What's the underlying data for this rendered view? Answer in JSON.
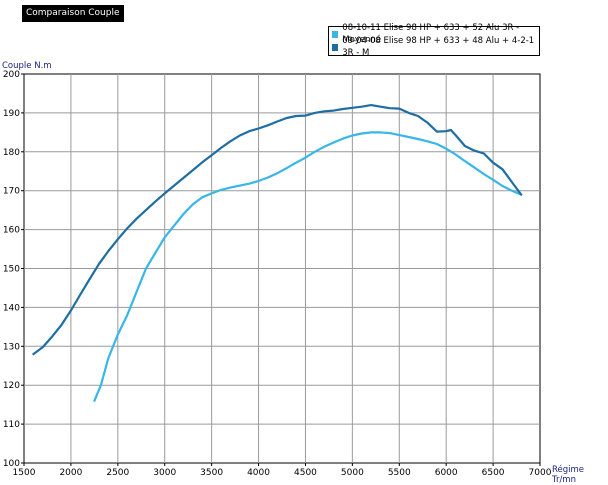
{
  "window_title": "Comparaison Couple",
  "chart_data": {
    "type": "line",
    "ylabel": "Couple N.m",
    "xlabel": "Régime Tr/mn",
    "xlim": [
      1500,
      7000
    ],
    "ylim": [
      100,
      200
    ],
    "xticks": [
      1500,
      2000,
      2500,
      3000,
      3500,
      4000,
      4500,
      5000,
      5500,
      6000,
      6500,
      7000
    ],
    "yticks": [
      100,
      110,
      120,
      130,
      140,
      150,
      160,
      170,
      180,
      190,
      200
    ],
    "grid": true,
    "legend_position": "top-right",
    "series": [
      {
        "name": "08-10-11 Elise 98 HP + 633 + 52 Alu 3R - Moyenné",
        "color": "#38b6e8",
        "x": [
          2250,
          2320,
          2400,
          2500,
          2600,
          2700,
          2800,
          2900,
          3000,
          3100,
          3200,
          3300,
          3400,
          3500,
          3600,
          3700,
          3800,
          3900,
          4000,
          4100,
          4200,
          4300,
          4400,
          4500,
          4600,
          4700,
          4800,
          4900,
          5000,
          5100,
          5200,
          5300,
          5400,
          5500,
          5600,
          5700,
          5800,
          5900,
          6000,
          6100,
          6200,
          6300,
          6400,
          6500,
          6600,
          6700,
          6800
        ],
        "y": [
          116,
          120,
          127,
          133,
          138,
          144,
          150,
          154,
          158,
          161,
          164,
          166.5,
          168.3,
          169.3,
          170.2,
          170.8,
          171.3,
          171.8,
          172.5,
          173.4,
          174.5,
          175.8,
          177.2,
          178.5,
          180,
          181.3,
          182.4,
          183.4,
          184.2,
          184.7,
          185,
          185,
          184.8,
          184.3,
          183.8,
          183.3,
          182.7,
          182,
          180.8,
          179.3,
          177.6,
          176,
          174.3,
          172.8,
          171.2,
          170,
          169
        ]
      },
      {
        "name": "09-04-08 Elise 98 HP + 633 + 48 Alu + 4-2-1 3R - M",
        "color": "#1f6ea3",
        "x": [
          1600,
          1700,
          1800,
          1900,
          2000,
          2100,
          2200,
          2300,
          2400,
          2500,
          2600,
          2700,
          2800,
          2900,
          3000,
          3100,
          3200,
          3300,
          3400,
          3500,
          3600,
          3700,
          3800,
          3900,
          4000,
          4100,
          4200,
          4300,
          4400,
          4500,
          4600,
          4700,
          4800,
          4900,
          5000,
          5100,
          5200,
          5300,
          5400,
          5500,
          5600,
          5700,
          5800,
          5900,
          6000,
          6050,
          6100,
          6200,
          6300,
          6400,
          6500,
          6600,
          6700,
          6800
        ],
        "y": [
          128,
          129.8,
          132.5,
          135.5,
          139.2,
          143.3,
          147.3,
          151.2,
          154.5,
          157.5,
          160.3,
          162.8,
          165,
          167.2,
          169.3,
          171.3,
          173.3,
          175.3,
          177.3,
          179.1,
          181,
          182.7,
          184.2,
          185.3,
          186,
          186.8,
          187.8,
          188.7,
          189.2,
          189.3,
          190,
          190.4,
          190.6,
          191,
          191.3,
          191.6,
          192,
          191.6,
          191.2,
          191.1,
          190,
          189.2,
          187.5,
          185.2,
          185.3,
          185.6,
          184.3,
          181.5,
          180.3,
          179.6,
          177.2,
          175.5,
          172.2,
          169
        ]
      }
    ]
  }
}
